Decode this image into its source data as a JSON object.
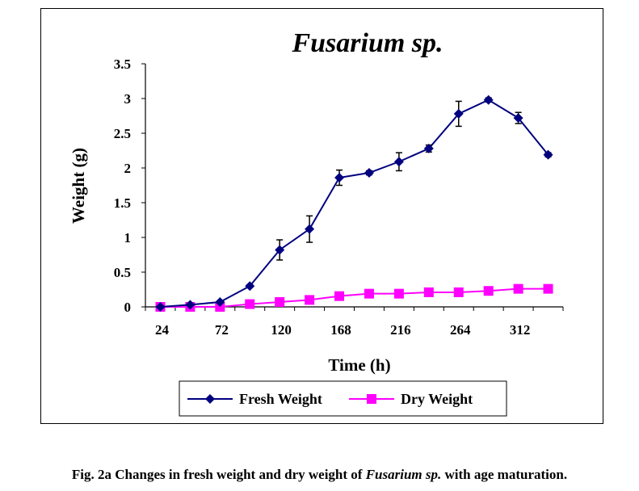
{
  "chart_data": {
    "type": "line",
    "title": "Fusarium sp.",
    "xlabel": "Time (h)",
    "ylabel": "Weight (g)",
    "ylim": [
      0,
      3.5
    ],
    "yticks": [
      "0",
      "0.5",
      "1",
      "1.5",
      "2",
      "2.5",
      "3",
      "3.5"
    ],
    "x": [
      24,
      48,
      72,
      96,
      120,
      144,
      168,
      192,
      216,
      240,
      264,
      288,
      312,
      336
    ],
    "xtick_labels": [
      "24",
      "72",
      "120",
      "168",
      "216",
      "264",
      "312"
    ],
    "grid": false,
    "legend_placement": "bottom",
    "series": [
      {
        "name": "Fresh Weight",
        "color": "#000080",
        "marker": "diamond",
        "values": [
          0,
          0.03,
          0.07,
          0.3,
          0.82,
          1.12,
          1.86,
          1.93,
          2.09,
          2.28,
          2.78,
          2.98,
          2.72,
          2.19
        ],
        "errors": [
          0,
          0,
          0,
          0.02,
          0.145,
          0.19,
          0.11,
          0.03,
          0.13,
          0.05,
          0.18,
          0.03,
          0.08,
          0.03
        ]
      },
      {
        "name": "Dry Weight",
        "color": "#ff00ff",
        "marker": "square",
        "values": [
          0,
          0,
          0,
          0.04,
          0.07,
          0.1,
          0.155,
          0.19,
          0.19,
          0.21,
          0.21,
          0.23,
          0.26,
          0.26
        ]
      }
    ]
  },
  "caption": {
    "prefix": "Fig. 2a Changes in fresh weight and dry weight of ",
    "italic": "Fusarium sp.",
    "suffix": " with age maturation."
  }
}
